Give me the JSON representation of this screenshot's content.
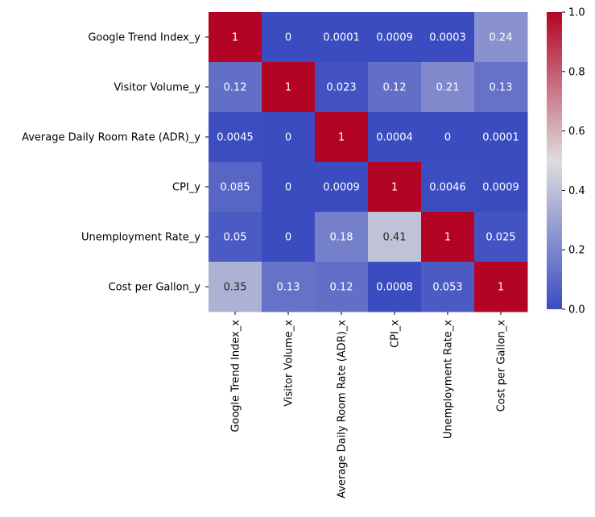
{
  "chart_data": {
    "type": "heatmap",
    "title": "",
    "xlabel": "",
    "ylabel": "",
    "x_categories": [
      "Google Trend Index_x",
      "Visitor Volume_x",
      "Average Daily Room Rate (ADR)_x",
      "CPI_x",
      "Unemployment Rate_x",
      "Cost per Gallon_x"
    ],
    "y_categories": [
      "Google Trend Index_y",
      "Visitor Volume_y",
      "Average Daily Room Rate (ADR)_y",
      "CPI_y",
      "Unemployment Rate_y",
      "Cost per Gallon_y"
    ],
    "values": [
      [
        1,
        0,
        0.0001,
        0.0009,
        0.0003,
        0.24
      ],
      [
        0.12,
        1,
        0.023,
        0.12,
        0.21,
        0.13
      ],
      [
        0.0045,
        0,
        1,
        0.0004,
        0,
        0.0001
      ],
      [
        0.085,
        0,
        0.0009,
        1,
        0.0046,
        0.0009
      ],
      [
        0.05,
        0,
        0.18,
        0.41,
        1,
        0.025
      ],
      [
        0.35,
        0.13,
        0.12,
        0.0008,
        0.053,
        1
      ]
    ],
    "annotations": [
      [
        "1",
        "0",
        "0.0001",
        "0.0009",
        "0.0003",
        "0.24"
      ],
      [
        "0.12",
        "1",
        "0.023",
        "0.12",
        "0.21",
        "0.13"
      ],
      [
        "0.0045",
        "0",
        "1",
        "0.0004",
        "0",
        "0.0001"
      ],
      [
        "0.085",
        "0",
        "0.0009",
        "1",
        "0.0046",
        "0.0009"
      ],
      [
        "0.05",
        "0",
        "0.18",
        "0.41",
        "1",
        "0.025"
      ],
      [
        "0.35",
        "0.13",
        "0.12",
        "0.0008",
        "0.053",
        "1"
      ]
    ],
    "colormap": "coolwarm",
    "colormap_stops": [
      "#3b4cc0",
      "#dddddd",
      "#b40426"
    ],
    "vmin": 0,
    "vmax": 1,
    "colorbar": {
      "ticks": [
        0.0,
        0.2,
        0.4,
        0.6,
        0.8,
        1.0
      ],
      "tick_labels": [
        "0.0",
        "0.2",
        "0.4",
        "0.6",
        "0.8",
        "1.0"
      ]
    },
    "grid": false,
    "legend": "colorbar-right"
  }
}
